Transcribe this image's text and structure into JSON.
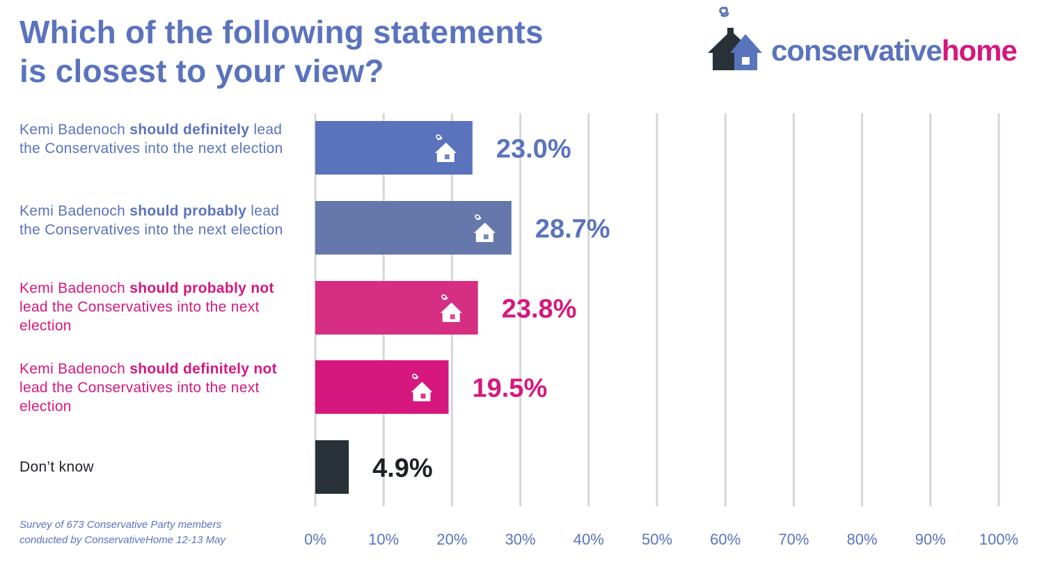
{
  "title_line1": "Which of the following statements",
  "title_line2": "is closest to your view?",
  "logo": {
    "part1": "conservative",
    "part2": "home",
    "color1": "#5a73bd",
    "color2": "#d6177d",
    "icon": "house-with-smoke-icon"
  },
  "source_line1": "Survey of 673 Conservative Party members",
  "source_line2": "conducted by ConservativeHome 12-13 May",
  "labels": [
    {
      "pre": "Kemi Badenoch ",
      "bold": "should definitely",
      "post": " lead the Conservatives into the next election"
    },
    {
      "pre": "Kemi Badenoch ",
      "bold": "should probably",
      "post": " lead the Conservatives into the next election"
    },
    {
      "pre": "Kemi Badenoch ",
      "bold": "should probably not",
      "post": " lead the Conservatives into the next election"
    },
    {
      "pre": "Kemi Badenoch ",
      "bold": "should definitely not",
      "post": " lead the Conservatives into the next election"
    },
    {
      "pre": "Don’t know",
      "bold": "",
      "post": ""
    }
  ],
  "chart_data": {
    "type": "bar",
    "orientation": "horizontal",
    "title": "Which of the following statements is closest to your view?",
    "categories": [
      "Kemi Badenoch should definitely lead the Conservatives into the next election",
      "Kemi Badenoch should probably lead the Conservatives into the next election",
      "Kemi Badenoch should probably not lead the Conservatives into the next election",
      "Kemi Badenoch should definitely not lead the Conservatives into the next election",
      "Don’t know"
    ],
    "values": [
      23.0,
      28.7,
      23.8,
      19.5,
      4.9
    ],
    "value_labels": [
      "23.0%",
      "28.7%",
      "23.8%",
      "19.5%",
      "4.9%"
    ],
    "x_ticks": [
      "0%",
      "10%",
      "20%",
      "30%",
      "40%",
      "50%",
      "60%",
      "70%",
      "80%",
      "90%",
      "100%"
    ],
    "xlim": [
      0,
      100
    ],
    "grid": true,
    "legend": "none",
    "colors": [
      "#5a73bd",
      "#6577ab",
      "#d62e83",
      "#d6177d",
      "#283038"
    ],
    "label_colors": [
      "#5a73bd",
      "#5a73bd",
      "#d6177d",
      "#d6177d",
      "#1d2126"
    ],
    "bar_icon": "house-with-smoke-icon"
  }
}
